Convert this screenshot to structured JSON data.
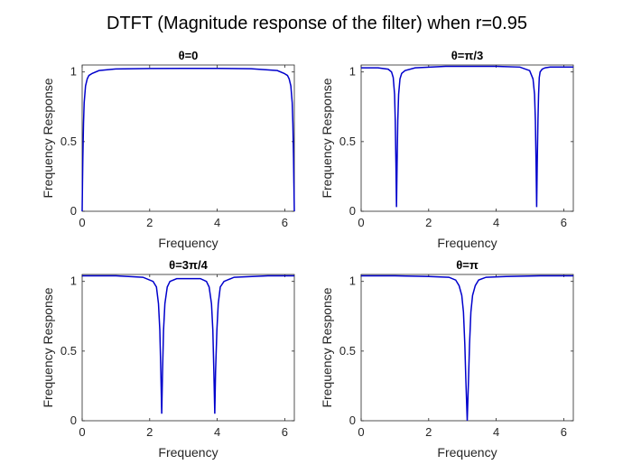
{
  "figure": {
    "suptitle": "DTFT (Magnitude response of the filter) when r=0.95"
  },
  "chart_data": [
    {
      "type": "line",
      "title": "θ=0",
      "xlabel": "Frequency",
      "ylabel": "Frequency Response",
      "xlim": [
        0,
        6.2832
      ],
      "ylim": [
        0,
        1.05
      ],
      "xticks": [
        0,
        2,
        4,
        6
      ],
      "yticks": [
        0,
        0.5,
        1
      ],
      "xtick_labels": [
        "0",
        "2",
        "4",
        "6"
      ],
      "ytick_labels": [
        "0",
        "0.5",
        "1"
      ],
      "grid": false,
      "color": "#0000cc",
      "x": [
        0,
        0.01,
        0.02,
        0.04,
        0.06,
        0.1,
        0.15,
        0.2,
        0.3,
        0.5,
        1,
        2,
        3,
        3.1416,
        4,
        5,
        5.78,
        5.98,
        6.08,
        6.13,
        6.18,
        6.22,
        6.24,
        6.26,
        6.27,
        6.2832
      ],
      "y": [
        0,
        0.2,
        0.38,
        0.63,
        0.78,
        0.9,
        0.95,
        0.975,
        0.99,
        1.01,
        1.022,
        1.025,
        1.0255,
        1.0256,
        1.0255,
        1.023,
        1.01,
        0.99,
        0.975,
        0.95,
        0.9,
        0.78,
        0.63,
        0.38,
        0.2,
        0
      ]
    },
    {
      "type": "line",
      "title": "θ=π/3",
      "xlabel": "Frequency",
      "ylabel": "Frequency Response",
      "xlim": [
        0,
        6.2832
      ],
      "ylim": [
        0,
        1.05
      ],
      "xticks": [
        0,
        2,
        4,
        6
      ],
      "yticks": [
        0,
        0.5,
        1
      ],
      "xtick_labels": [
        "0",
        "2",
        "4",
        "6"
      ],
      "ytick_labels": [
        "0",
        "0.5",
        "1"
      ],
      "grid": false,
      "color": "#0000cc",
      "x": [
        0,
        0.5,
        0.8,
        0.9,
        0.95,
        0.99,
        1.01,
        1.03,
        1.047,
        1.065,
        1.085,
        1.11,
        1.15,
        1.2,
        1.3,
        1.6,
        2.5,
        3.1416,
        4,
        4.7,
        4.99,
        5.09,
        5.135,
        5.16,
        5.18,
        5.198,
        5.215,
        5.236,
        5.255,
        5.275,
        5.3,
        5.36,
        5.45,
        5.6,
        6,
        6.2832
      ],
      "y": [
        1.03,
        1.03,
        1.02,
        1.0,
        0.96,
        0.84,
        0.65,
        0.35,
        0.03,
        0.35,
        0.65,
        0.84,
        0.95,
        0.99,
        1.01,
        1.03,
        1.04,
        1.04,
        1.04,
        1.035,
        1.01,
        0.95,
        0.84,
        0.65,
        0.35,
        0.03,
        0.35,
        0.65,
        0.84,
        0.96,
        1.0,
        1.02,
        1.03,
        1.035,
        1.035,
        1.035
      ]
    },
    {
      "type": "line",
      "title": "θ=3π/4",
      "xlabel": "Frequency",
      "ylabel": "Frequency Response",
      "xlim": [
        0,
        6.2832
      ],
      "ylim": [
        0,
        1.05
      ],
      "xticks": [
        0,
        2,
        4,
        6
      ],
      "yticks": [
        0,
        0.5,
        1
      ],
      "xtick_labels": [
        "0",
        "2",
        "4",
        "6"
      ],
      "ytick_labels": [
        "0",
        "0.5",
        "1"
      ],
      "grid": false,
      "color": "#0000cc",
      "x": [
        0,
        1,
        1.8,
        2.1,
        2.2,
        2.26,
        2.3,
        2.33,
        2.356,
        2.38,
        2.41,
        2.45,
        2.52,
        2.6,
        2.8,
        3.1416,
        3.5,
        3.68,
        3.76,
        3.83,
        3.87,
        3.9,
        3.927,
        3.95,
        3.99,
        4.03,
        4.09,
        4.2,
        4.5,
        5.5,
        6.2832
      ],
      "y": [
        1.04,
        1.04,
        1.03,
        1.0,
        0.96,
        0.84,
        0.65,
        0.35,
        0.05,
        0.35,
        0.65,
        0.84,
        0.96,
        1.0,
        1.02,
        1.02,
        1.02,
        1.0,
        0.96,
        0.84,
        0.65,
        0.35,
        0.05,
        0.35,
        0.65,
        0.84,
        0.96,
        1.0,
        1.03,
        1.04,
        1.04
      ]
    },
    {
      "type": "line",
      "title": "θ=π",
      "xlabel": "Frequency",
      "ylabel": "Frequency Response",
      "xlim": [
        0,
        6.2832
      ],
      "ylim": [
        0,
        1.05
      ],
      "xticks": [
        0,
        2,
        4,
        6
      ],
      "yticks": [
        0,
        0.5,
        1
      ],
      "xtick_labels": [
        "0",
        "2",
        "4",
        "6"
      ],
      "ytick_labels": [
        "0",
        "0.5",
        "1"
      ],
      "grid": false,
      "color": "#0000cc",
      "x": [
        0,
        1,
        2,
        2.6,
        2.8,
        2.9,
        2.98,
        3.03,
        3.07,
        3.1,
        3.1416,
        3.18,
        3.21,
        3.25,
        3.3,
        3.38,
        3.48,
        3.7,
        4.3,
        5.3,
        6.2832
      ],
      "y": [
        1.04,
        1.04,
        1.035,
        1.03,
        1.01,
        0.97,
        0.9,
        0.78,
        0.55,
        0.3,
        0,
        0.3,
        0.55,
        0.78,
        0.9,
        0.97,
        1.01,
        1.03,
        1.035,
        1.04,
        1.04
      ]
    }
  ]
}
